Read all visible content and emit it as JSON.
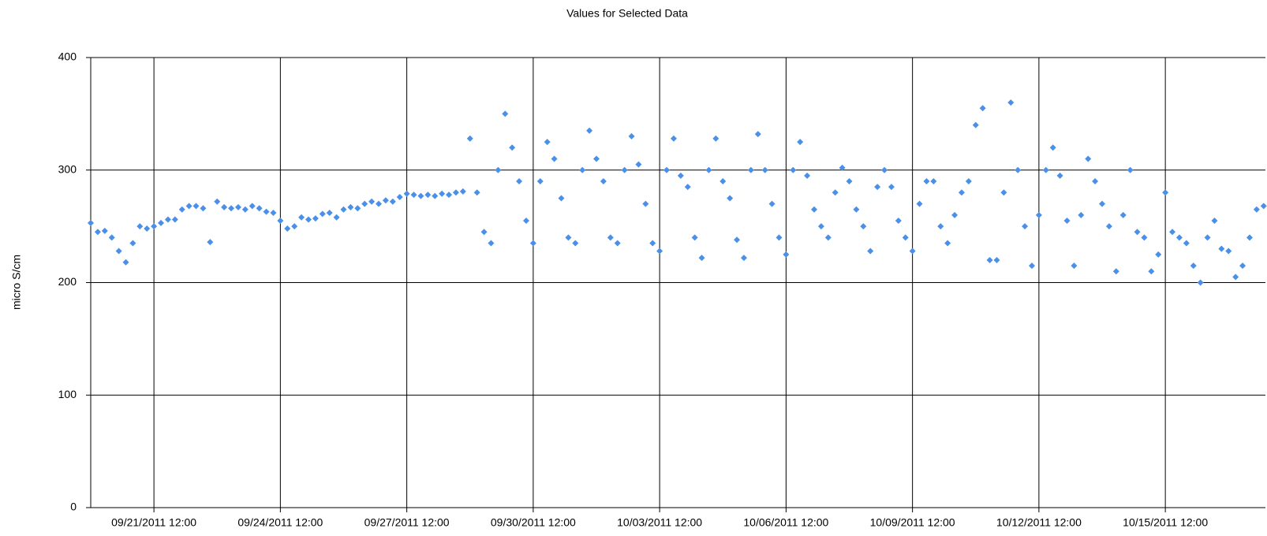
{
  "chart_data": {
    "type": "scatter",
    "title": "Values for Selected Data",
    "y_label": "micro S/cm",
    "xlim": [
      "09/20/2011 00:00",
      "10/17/2011 21:00"
    ],
    "xticks": [
      "09/21/2011 12:00",
      "09/24/2011 12:00",
      "09/27/2011 12:00",
      "09/30/2011 12:00",
      "10/03/2011 12:00",
      "10/06/2011 12:00",
      "10/09/2011 12:00",
      "10/12/2011 12:00",
      "10/15/2011 12:00"
    ],
    "ylim": [
      0,
      400
    ],
    "yticks": [
      0,
      100,
      200,
      300,
      400
    ],
    "grid": true,
    "series": [
      {
        "color": "#4a8fe8",
        "x": [
          "09/20/2011 00:00",
          "09/20/2011 04:00",
          "09/20/2011 08:00",
          "09/20/2011 12:00",
          "09/20/2011 16:00",
          "09/20/2011 20:00",
          "09/21/2011 00:00",
          "09/21/2011 04:00",
          "09/21/2011 08:00",
          "09/21/2011 12:00",
          "09/21/2011 16:00",
          "09/21/2011 20:00",
          "09/22/2011 00:00",
          "09/22/2011 04:00",
          "09/22/2011 08:00",
          "09/22/2011 12:00",
          "09/22/2011 16:00",
          "09/22/2011 20:00",
          "09/23/2011 00:00",
          "09/23/2011 04:00",
          "09/23/2011 08:00",
          "09/23/2011 12:00",
          "09/23/2011 16:00",
          "09/23/2011 20:00",
          "09/24/2011 00:00",
          "09/24/2011 04:00",
          "09/24/2011 08:00",
          "09/24/2011 12:00",
          "09/24/2011 16:00",
          "09/24/2011 20:00",
          "09/25/2011 00:00",
          "09/25/2011 04:00",
          "09/25/2011 08:00",
          "09/25/2011 12:00",
          "09/25/2011 16:00",
          "09/25/2011 20:00",
          "09/26/2011 00:00",
          "09/26/2011 04:00",
          "09/26/2011 08:00",
          "09/26/2011 12:00",
          "09/26/2011 16:00",
          "09/26/2011 20:00",
          "09/27/2011 00:00",
          "09/27/2011 04:00",
          "09/27/2011 08:00",
          "09/27/2011 12:00",
          "09/27/2011 16:00",
          "09/27/2011 20:00",
          "09/28/2011 00:00",
          "09/28/2011 04:00",
          "09/28/2011 08:00",
          "09/28/2011 12:00",
          "09/28/2011 16:00",
          "09/28/2011 20:00",
          "09/29/2011 00:00",
          "09/29/2011 04:00",
          "09/29/2011 08:00",
          "09/29/2011 12:00",
          "09/29/2011 16:00",
          "09/29/2011 20:00",
          "09/30/2011 00:00",
          "09/30/2011 04:00",
          "09/30/2011 08:00",
          "09/30/2011 12:00",
          "09/30/2011 16:00",
          "09/30/2011 20:00",
          "10/01/2011 00:00",
          "10/01/2011 04:00",
          "10/01/2011 08:00",
          "10/01/2011 12:00",
          "10/01/2011 16:00",
          "10/01/2011 20:00",
          "10/02/2011 00:00",
          "10/02/2011 04:00",
          "10/02/2011 08:00",
          "10/02/2011 12:00",
          "10/02/2011 16:00",
          "10/02/2011 20:00",
          "10/03/2011 00:00",
          "10/03/2011 04:00",
          "10/03/2011 08:00",
          "10/03/2011 12:00",
          "10/03/2011 16:00",
          "10/03/2011 20:00",
          "10/04/2011 00:00",
          "10/04/2011 04:00",
          "10/04/2011 08:00",
          "10/04/2011 12:00",
          "10/04/2011 16:00",
          "10/04/2011 20:00",
          "10/05/2011 00:00",
          "10/05/2011 04:00",
          "10/05/2011 08:00",
          "10/05/2011 12:00",
          "10/05/2011 16:00",
          "10/05/2011 20:00",
          "10/06/2011 00:00",
          "10/06/2011 04:00",
          "10/06/2011 08:00",
          "10/06/2011 12:00",
          "10/06/2011 16:00",
          "10/06/2011 20:00",
          "10/07/2011 00:00",
          "10/07/2011 04:00",
          "10/07/2011 08:00",
          "10/07/2011 12:00",
          "10/07/2011 16:00",
          "10/07/2011 20:00",
          "10/08/2011 00:00",
          "10/08/2011 04:00",
          "10/08/2011 08:00",
          "10/08/2011 12:00",
          "10/08/2011 16:00",
          "10/08/2011 20:00",
          "10/09/2011 00:00",
          "10/09/2011 04:00",
          "10/09/2011 08:00",
          "10/09/2011 12:00",
          "10/09/2011 16:00",
          "10/09/2011 20:00",
          "10/10/2011 00:00",
          "10/10/2011 04:00",
          "10/10/2011 08:00",
          "10/10/2011 12:00",
          "10/10/2011 16:00",
          "10/10/2011 20:00",
          "10/11/2011 00:00",
          "10/11/2011 04:00",
          "10/11/2011 08:00",
          "10/11/2011 12:00",
          "10/11/2011 16:00",
          "10/11/2011 20:00",
          "10/12/2011 00:00",
          "10/12/2011 04:00",
          "10/12/2011 08:00",
          "10/12/2011 12:00",
          "10/12/2011 16:00",
          "10/12/2011 20:00",
          "10/13/2011 00:00",
          "10/13/2011 04:00",
          "10/13/2011 08:00",
          "10/13/2011 12:00",
          "10/13/2011 16:00",
          "10/13/2011 20:00",
          "10/14/2011 00:00",
          "10/14/2011 04:00",
          "10/14/2011 08:00",
          "10/14/2011 12:00",
          "10/14/2011 16:00",
          "10/14/2011 20:00",
          "10/15/2011 00:00",
          "10/15/2011 04:00",
          "10/15/2011 08:00",
          "10/15/2011 12:00",
          "10/15/2011 16:00",
          "10/15/2011 20:00",
          "10/16/2011 00:00",
          "10/16/2011 04:00",
          "10/16/2011 08:00",
          "10/16/2011 12:00",
          "10/16/2011 16:00",
          "10/16/2011 20:00",
          "10/17/2011 00:00",
          "10/17/2011 04:00",
          "10/17/2011 08:00",
          "10/17/2011 12:00",
          "10/17/2011 16:00",
          "10/17/2011 20:00"
        ],
        "values": [
          253,
          245,
          246,
          240,
          228,
          218,
          235,
          250,
          248,
          250,
          253,
          256,
          256,
          265,
          268,
          268,
          266,
          236,
          272,
          267,
          266,
          267,
          265,
          268,
          266,
          263,
          262,
          255,
          248,
          250,
          258,
          256,
          257,
          261,
          262,
          258,
          265,
          267,
          266,
          270,
          272,
          270,
          273,
          272,
          276,
          279,
          278,
          277,
          278,
          277,
          279,
          278,
          280,
          281,
          328,
          280,
          245,
          235,
          300,
          350,
          320,
          290,
          255,
          235,
          290,
          325,
          310,
          275,
          240,
          235,
          300,
          335,
          310,
          290,
          240,
          235,
          300,
          330,
          305,
          270,
          235,
          228,
          300,
          328,
          295,
          285,
          240,
          222,
          300,
          328,
          290,
          275,
          238,
          222,
          300,
          332,
          300,
          270,
          240,
          225,
          300,
          325,
          295,
          265,
          250,
          240,
          280,
          302,
          290,
          265,
          250,
          228,
          285,
          300,
          285,
          255,
          240,
          228,
          270,
          290,
          290,
          250,
          235,
          260,
          280,
          290,
          340,
          355,
          220,
          220,
          280,
          360,
          300,
          250,
          215,
          260,
          300,
          320,
          295,
          255,
          215,
          260,
          310,
          290,
          270,
          250,
          210,
          260,
          300,
          245,
          240,
          210,
          225,
          280,
          245,
          240,
          235,
          215,
          200,
          240,
          255,
          230,
          228,
          205,
          215,
          240,
          265,
          268
        ]
      }
    ]
  }
}
